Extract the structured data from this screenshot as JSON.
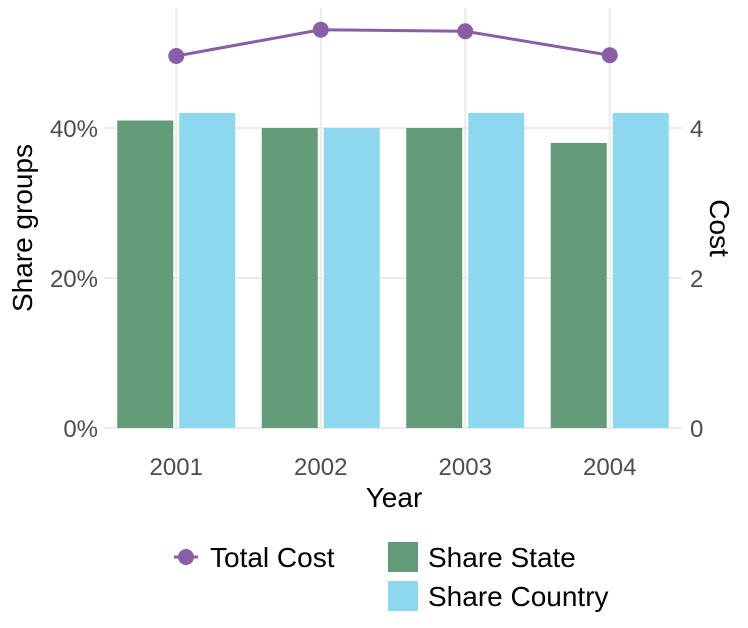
{
  "chart_data": {
    "type": "bar+line",
    "categories": [
      "2001",
      "2002",
      "2003",
      "2004"
    ],
    "xlabel": "Year",
    "ylabel_left": "Share groups",
    "ylabel_right": "Cost",
    "left_axis": {
      "ylim": [
        0,
        0.56
      ],
      "ticks": [
        0,
        0.2,
        0.4
      ],
      "tick_labels": [
        "0%",
        "20%",
        "40%"
      ]
    },
    "right_axis": {
      "ylim": [
        0,
        5.6
      ],
      "ticks": [
        0,
        2,
        4
      ],
      "tick_labels": [
        "0",
        "2",
        "4"
      ]
    },
    "bar_series": [
      {
        "name": "Share State",
        "color": "#639a77",
        "values": [
          0.41,
          0.4,
          0.4,
          0.38
        ]
      },
      {
        "name": "Share Country",
        "color": "#8dd7ef",
        "values": [
          0.42,
          0.4,
          0.42,
          0.42
        ]
      }
    ],
    "line_series": [
      {
        "name": "Total Cost",
        "color": "#8a5ea6",
        "axis": "right",
        "values": [
          4.96,
          5.31,
          5.29,
          4.97
        ]
      }
    ],
    "legend": {
      "position": "bottom",
      "line_label": "Total Cost",
      "bar_labels": [
        "Share State",
        "Share Country"
      ]
    }
  }
}
